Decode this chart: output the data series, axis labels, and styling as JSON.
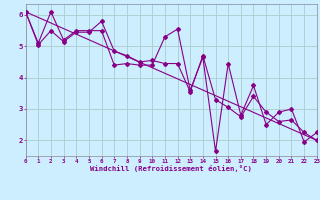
{
  "xlabel": "Windchill (Refroidissement éolien,°C)",
  "background_color": "#cceeff",
  "grid_color": "#aacccc",
  "line_color": "#880088",
  "x_min": 0,
  "x_max": 23,
  "y_min": 1.5,
  "y_max": 6.35,
  "yticks": [
    2,
    3,
    4,
    5,
    6
  ],
  "xticks": [
    0,
    1,
    2,
    3,
    4,
    5,
    6,
    7,
    8,
    9,
    10,
    11,
    12,
    13,
    14,
    15,
    16,
    17,
    18,
    19,
    20,
    21,
    22,
    23
  ],
  "series1_x": [
    0,
    1,
    2,
    3,
    4,
    5,
    6,
    7,
    8,
    9,
    10,
    11,
    12,
    13,
    14,
    15,
    16,
    17,
    18,
    19,
    20,
    21,
    22,
    23
  ],
  "series1_y": [
    6.1,
    5.1,
    6.1,
    5.2,
    5.5,
    5.5,
    5.5,
    4.4,
    4.45,
    4.4,
    4.4,
    5.3,
    5.55,
    3.6,
    4.65,
    1.65,
    4.45,
    2.8,
    3.75,
    2.5,
    2.9,
    3.0,
    1.95,
    2.25
  ],
  "series2_x": [
    0,
    1,
    2,
    3,
    4,
    5,
    6,
    7,
    8,
    9,
    10,
    11,
    12,
    13,
    14,
    15,
    16,
    17,
    18,
    19,
    20,
    21,
    22,
    23
  ],
  "series2_y": [
    6.1,
    5.05,
    5.5,
    5.15,
    5.45,
    5.45,
    5.8,
    4.85,
    4.7,
    4.5,
    4.55,
    4.45,
    4.45,
    3.55,
    4.7,
    3.3,
    3.05,
    2.75,
    3.4,
    2.9,
    2.6,
    2.65,
    2.25,
    2.0
  ],
  "series3_x": [
    0,
    23
  ],
  "series3_y": [
    6.1,
    2.0
  ],
  "marker_size": 2.0,
  "line_width": 0.8,
  "tick_fontsize": 4.2,
  "label_fontsize": 5.2
}
